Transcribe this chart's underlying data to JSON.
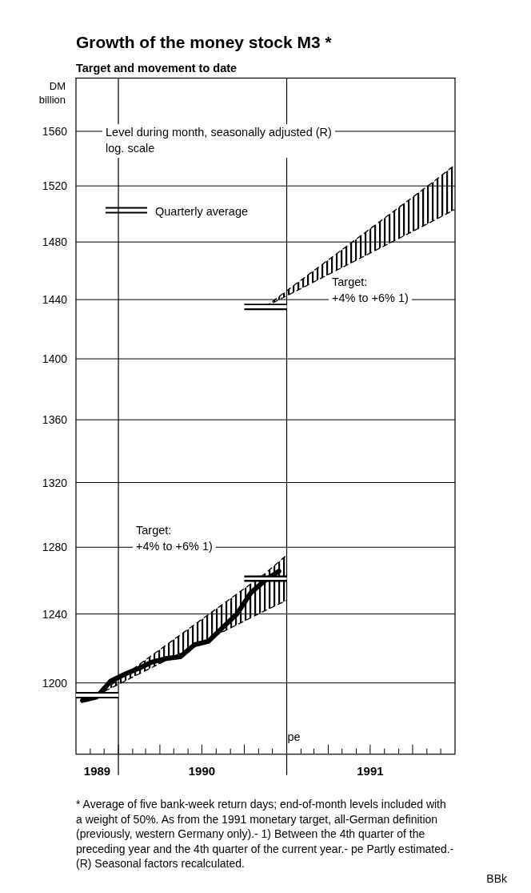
{
  "chart_data": {
    "type": "line",
    "title": "Growth of the money stock M3 *",
    "subtitle": "Target and movement to date",
    "ylabel": "DM billion",
    "log": true,
    "grid": "y",
    "legend": "top left",
    "xlim": [
      "1989-10-01",
      "1992-01-01"
    ],
    "ylim": [
      1160,
      1600
    ],
    "yticks": [
      1200,
      1240,
      1280,
      1320,
      1360,
      1400,
      1440,
      1480,
      1520,
      1560
    ],
    "xticks": [
      {
        "value": "1989-11-01",
        "label": null
      },
      {
        "value": "1989-12-01",
        "label": null
      },
      {
        "value": "1990-01-01",
        "label": null
      },
      {
        "value": "1990-02-01",
        "label": null
      },
      {
        "value": "1990-03-01",
        "label": null
      },
      {
        "value": "1990-04-01",
        "label": null
      },
      {
        "value": "1990-05-01",
        "label": null
      },
      {
        "value": "1990-06-01",
        "label": null
      },
      {
        "value": "1990-07-01",
        "label": null
      },
      {
        "value": "1990-08-01",
        "label": null
      },
      {
        "value": "1990-09-01",
        "label": null
      },
      {
        "value": "1990-10-01",
        "label": null
      },
      {
        "value": "1990-11-01",
        "label": null
      },
      {
        "value": "1990-12-01",
        "label": null
      },
      {
        "value": "1991-01-01",
        "label": null
      },
      {
        "value": "1991-02-01",
        "label": null
      },
      {
        "value": "1991-03-01",
        "label": null
      },
      {
        "value": "1991-04-01",
        "label": null
      },
      {
        "value": "1991-05-01",
        "label": null
      },
      {
        "value": "1991-06-01",
        "label": null
      },
      {
        "value": "1991-07-01",
        "label": null
      },
      {
        "value": "1991-08-01",
        "label": null
      },
      {
        "value": "1991-09-01",
        "label": null
      },
      {
        "value": "1991-10-01",
        "label": null
      },
      {
        "value": "1991-11-01",
        "label": null
      },
      {
        "value": "1991-12-01",
        "label": null
      },
      {
        "value": "1989-11-16",
        "label": "1989"
      },
      {
        "value": "1990-07-01",
        "label": "1990"
      },
      {
        "value": "1991-07-01",
        "label": "1991"
      }
    ],
    "ref_lines": [
      {
        "axis": "x",
        "value": "1990-01-01",
        "label": null
      },
      {
        "axis": "x",
        "value": "1991-01-01",
        "label": null
      }
    ],
    "series": [
      {
        "color": "#000000",
        "x": [
          "1989-10-15",
          "1989-11-15",
          "1989-12-15",
          "1990-01-15",
          "1990-02-15",
          "1990-03-15",
          "1990-04-15",
          "1990-05-15",
          "1990-06-15",
          "1990-07-15",
          "1990-08-15",
          "1990-09-15",
          "1990-10-15",
          "1990-11-15",
          "1990-12-15"
        ],
        "values": [
          1190,
          1192,
          1201,
          1205,
          1208.5,
          1212,
          1214,
          1215,
          1222,
          1224,
          1232,
          1240,
          1252.5,
          1260,
          1265.5
        ]
      },
      {
        "type": "line",
        "line_style": "dashed",
        "color": "#000000",
        "x": [
          "1989-11-15",
          "1990-11-15",
          "1990-12-31"
        ],
        "values": [
          1193,
          1264,
          1275
        ]
      },
      {
        "type": "line",
        "line_style": "dashed",
        "color": "#000000",
        "x": [
          "1989-11-15",
          "1990-11-15",
          "1990-12-31"
        ],
        "values": [
          1193,
          1242,
          1248
        ]
      },
      {
        "type": "line",
        "line_style": "dashed",
        "color": "#000000",
        "x": [
          "1990-11-15",
          "1991-11-15",
          "1991-12-31"
        ],
        "values": [
          1435,
          1523,
          1535
        ]
      },
      {
        "type": "line",
        "line_style": "dashed",
        "color": "#000000",
        "x": [
          "1990-11-15",
          "1991-11-15",
          "1991-12-31"
        ],
        "values": [
          1435,
          1495,
          1503
        ]
      },
      {
        "type": "step",
        "name": "Quarterly average",
        "color": "#000000",
        "x": [
          "1989-10-01",
          "1990-01-01"
        ],
        "values": [
          1193,
          1193
        ]
      },
      {
        "type": "step",
        "color": "#000000",
        "x": [
          "1990-10-01",
          "1991-01-01"
        ],
        "values": [
          1261,
          1261
        ]
      },
      {
        "type": "step",
        "color": "#000000",
        "x": [
          "1990-10-01",
          "1991-01-01"
        ],
        "values": [
          1435,
          1435
        ]
      }
    ],
    "annotations": [
      "Level during month, seasonally adjusted (R)\nlog. scale",
      "Target:\n+4% to +6% 1)",
      "Target:\n+4% to +6% 1)",
      {
        "text": "pe",
        "x": "1991-01-01",
        "y": 1170
      },
      "* Average of five bank-week return days; end-of-month levels included with a weight of 50%. As from the 1991 monetary target, all-German definition (previously, western Germany only).- 1) Between the 4th quarter of the preceding year and the 4th quarter of the current year.- pe Partly estimated.- (R) Seasonal factors recalculated.",
      "BBk"
    ]
  }
}
